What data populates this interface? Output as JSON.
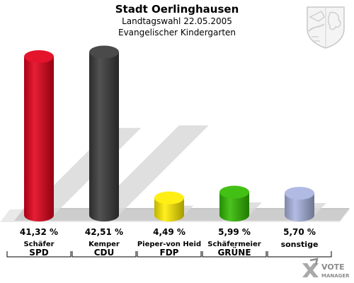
{
  "header": {
    "title": "Stadt Oerlinghausen",
    "subtitle_1": "Landtagswahl 22.05.2005",
    "subtitle_2": "Evangelischer Kindergarten"
  },
  "chart_data": {
    "type": "bar",
    "title": "Stadt Oerlinghausen",
    "subtitle": "Landtagswahl 22.05.2005 / Evangelischer Kindergarten",
    "categories": [
      "SPD",
      "CDU",
      "FDP",
      "GRÜNE",
      "sonstige"
    ],
    "candidates": [
      "Schäfer",
      "Kemper",
      "Pieper-von Heid",
      "Schäfermeier",
      ""
    ],
    "values": [
      41.32,
      42.51,
      4.49,
      5.99,
      5.7
    ],
    "value_labels": [
      "41,32 %",
      "42,51 %",
      "4,49 %",
      "5,99 %",
      "5,70 %"
    ],
    "colors": [
      "#e2001a",
      "#3a3a3a",
      "#ffee00",
      "#33bb00",
      "#a9b4e0"
    ],
    "unit": "%",
    "ylim": [
      0,
      45
    ],
    "grid": false,
    "legend": "none"
  },
  "logo": {
    "line1": "VOTE",
    "line2": "MANAGER"
  }
}
